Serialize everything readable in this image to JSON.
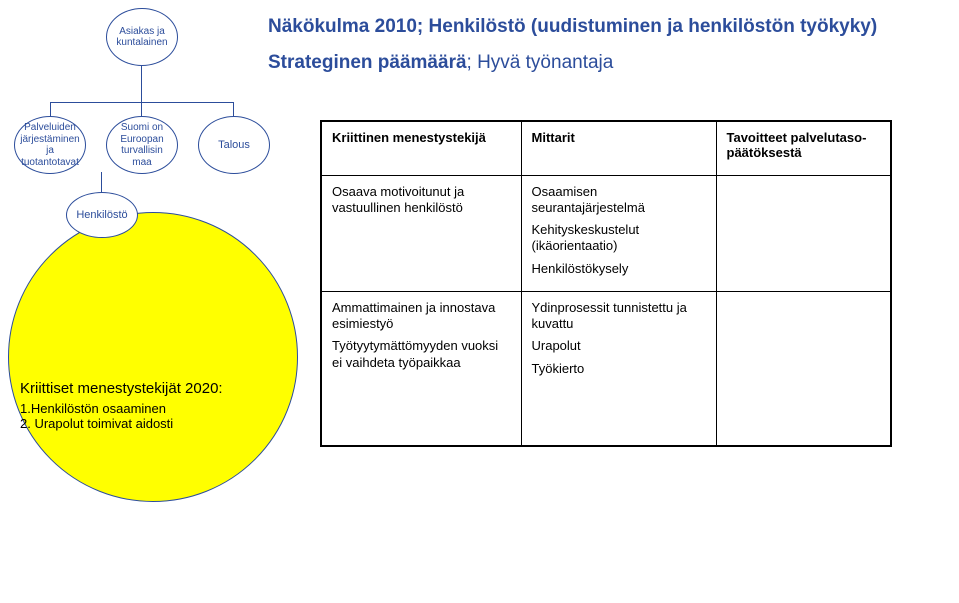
{
  "title": "Näkökulma 2010; Henkilöstö (uudistuminen ja henkilöstön työkyky)",
  "subtitle_strong": "Strateginen päämäärä",
  "subtitle_rest": "; Hyvä työnantaja",
  "nodes": {
    "top": "Asiakas ja kuntalainen",
    "left": "Palveluiden järjestäminen ja tuotantotavat",
    "mid": "Suomi on Euroopan turvallisin maa",
    "right": "Talous",
    "hk": "Henkilöstö"
  },
  "big": {
    "heading": "Kriittiset menestystekijät 2020:",
    "item1": "1.Henkilöstön osaaminen",
    "item2": "2. Urapolut toimivat aidosti"
  },
  "table": {
    "head": {
      "c1": "Kriittinen menestystekijä",
      "c2": "Mittarit",
      "c3": "Tavoitteet palvelutaso-päätöksestä"
    },
    "r1": {
      "c1": "Osaava motivoitunut ja vastuullinen henkilöstö",
      "c2a": "Osaamisen seurantajärjestelmä",
      "c2b": "Kehityskeskustelut (ikäorientaatio)",
      "c2c": "Henkilöstökysely",
      "c3": ""
    },
    "r2": {
      "c1a": "Ammattimainen ja innostava esimiestyö",
      "c1b": "Työtyytymättömyyden vuoksi ei vaihdeta työpaikkaa",
      "c2a": "Ydinprosessit tunnistettu ja kuvattu",
      "c2b": "Urapolut",
      "c2c": "Työkierto",
      "c3": ""
    }
  },
  "colors": {
    "accent": "#2c4d9b",
    "yellow": "#ffff00",
    "border": "#000000",
    "bg": "#ffffff"
  }
}
